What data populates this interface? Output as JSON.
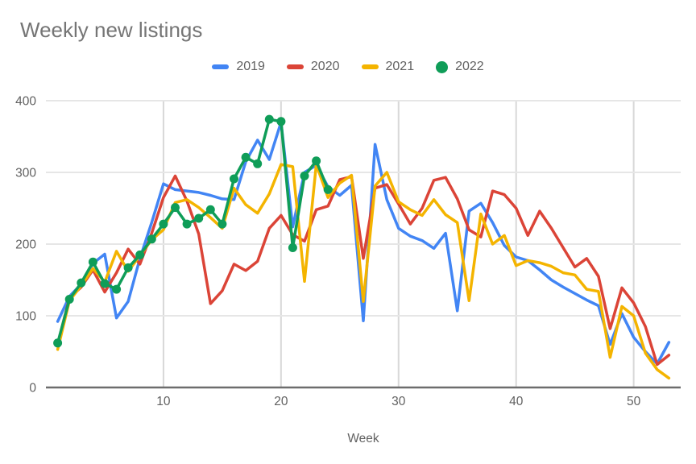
{
  "header": {
    "title": "Weekly new listings"
  },
  "legend": [
    {
      "label": "2019",
      "color": "#4285f4",
      "marker": "line"
    },
    {
      "label": "2020",
      "color": "#db4437",
      "marker": "line"
    },
    {
      "label": "2021",
      "color": "#f4b400",
      "marker": "line"
    },
    {
      "label": "2022",
      "color": "#0f9d58",
      "marker": "circle"
    }
  ],
  "axes": {
    "x_title": "Week",
    "x_ticks": [
      10,
      20,
      30,
      40,
      50
    ],
    "y_ticks": [
      0,
      100,
      200,
      300,
      400
    ],
    "x_range": [
      0,
      54
    ],
    "y_range": [
      0,
      400
    ]
  },
  "colors": {
    "grid_horizontal": "#e6e6e6",
    "grid_vertical": "#d8d8d8",
    "baseline": "#6d6d6d",
    "title_text": "#757575",
    "tick_text": "#616161"
  },
  "chart_data": {
    "type": "line",
    "title": "Weekly new listings",
    "xlabel": "Week",
    "ylabel": "",
    "xlim": [
      0,
      54
    ],
    "ylim": [
      0,
      400
    ],
    "grid": true,
    "legend_position": "top",
    "x": [
      1,
      2,
      3,
      4,
      5,
      6,
      7,
      8,
      9,
      10,
      11,
      12,
      13,
      14,
      15,
      16,
      17,
      18,
      19,
      20,
      21,
      22,
      23,
      24,
      25,
      26,
      27,
      28,
      29,
      30,
      31,
      32,
      33,
      34,
      35,
      36,
      37,
      38,
      39,
      40,
      41,
      42,
      43,
      44,
      45,
      46,
      47,
      48,
      49,
      50,
      51,
      52,
      53
    ],
    "series": [
      {
        "name": "2019",
        "color": "#4285f4",
        "style": "line",
        "values": [
          92,
          127,
          144,
          173,
          186,
          97,
          120,
          180,
          230,
          284,
          276,
          274,
          272,
          268,
          263,
          262,
          315,
          345,
          318,
          370,
          224,
          300,
          310,
          280,
          268,
          282,
          93,
          339,
          262,
          222,
          211,
          205,
          194,
          215,
          107,
          246,
          257,
          230,
          198,
          182,
          177,
          164,
          150,
          140,
          131,
          122,
          114,
          60,
          103,
          70,
          50,
          33,
          63
        ]
      },
      {
        "name": "2020",
        "color": "#db4437",
        "style": "line",
        "values": [
          60,
          125,
          140,
          164,
          133,
          160,
          193,
          172,
          215,
          265,
          295,
          260,
          214,
          117,
          135,
          172,
          163,
          176,
          222,
          240,
          213,
          204,
          248,
          253,
          290,
          294,
          180,
          278,
          283,
          256,
          228,
          250,
          289,
          293,
          263,
          220,
          210,
          274,
          269,
          250,
          212,
          246,
          222,
          195,
          168,
          180,
          155,
          82,
          139,
          118,
          85,
          32,
          45
        ]
      },
      {
        "name": "2021",
        "color": "#f4b400",
        "style": "line",
        "values": [
          53,
          121,
          142,
          166,
          147,
          190,
          162,
          184,
          206,
          220,
          258,
          262,
          251,
          237,
          222,
          278,
          255,
          243,
          270,
          311,
          308,
          148,
          311,
          265,
          285,
          296,
          120,
          281,
          300,
          259,
          248,
          240,
          262,
          241,
          230,
          121,
          242,
          200,
          212,
          170,
          177,
          174,
          169,
          160,
          157,
          137,
          134,
          42,
          113,
          100,
          48,
          25,
          13
        ]
      },
      {
        "name": "2022",
        "color": "#0f9d58",
        "style": "line-markers",
        "values": [
          62,
          123,
          146,
          175,
          145,
          137,
          167,
          185,
          207,
          228,
          251,
          228,
          236,
          248,
          228,
          291,
          321,
          312,
          374,
          371,
          195,
          295,
          316,
          276,
          null,
          null,
          null,
          null,
          null,
          null,
          null,
          null,
          null,
          null,
          null,
          null,
          null,
          null,
          null,
          null,
          null,
          null,
          null,
          null,
          null,
          null,
          null,
          null,
          null,
          null,
          null,
          null,
          null
        ]
      }
    ]
  }
}
